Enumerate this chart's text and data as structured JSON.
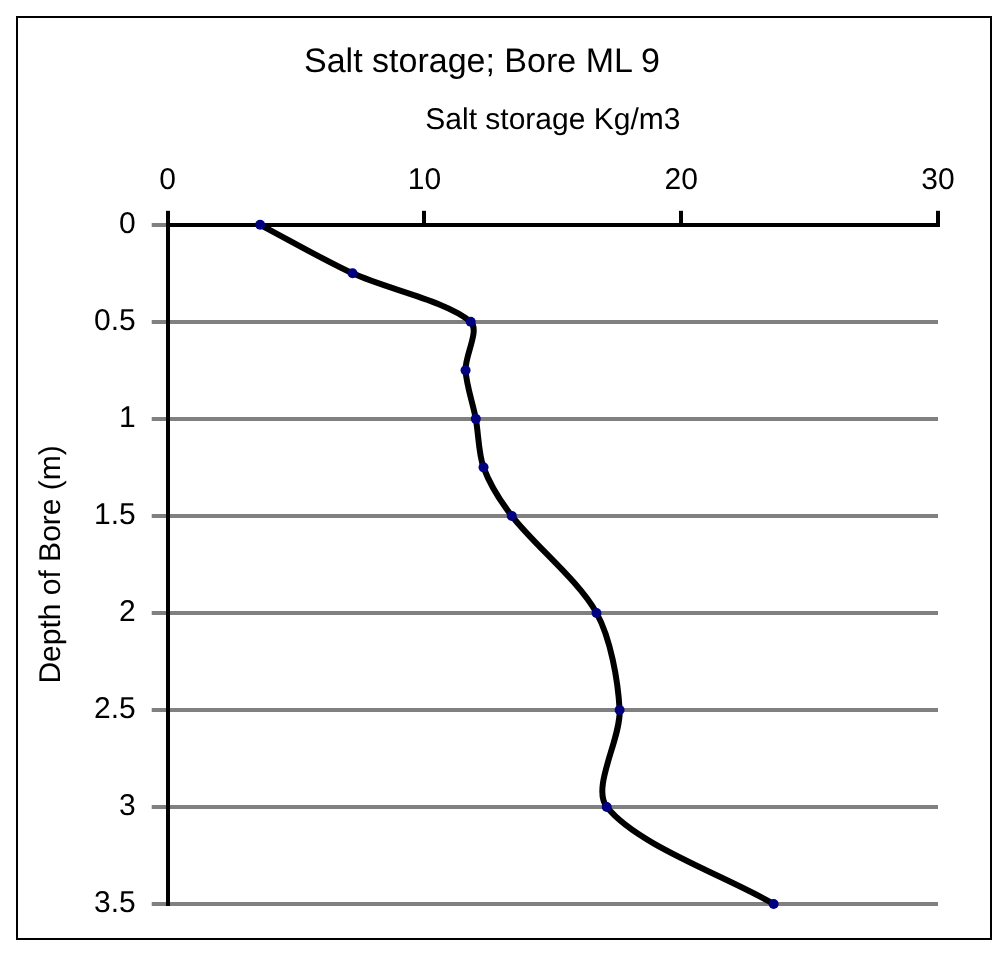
{
  "chart_data": {
    "type": "line",
    "title": "Salt storage; Bore ML 9",
    "xlabel": "Salt storage Kg/m3",
    "ylabel": "Depth of Bore (m)",
    "xlim": [
      0,
      30
    ],
    "xticks": [
      0,
      10,
      20,
      30
    ],
    "ylim": [
      3.5,
      0
    ],
    "yticks": [
      0,
      0.5,
      1,
      1.5,
      2,
      2.5,
      3,
      3.5
    ],
    "grid": "y",
    "legend": false,
    "marker": "circle",
    "line_style": "solid",
    "series": [
      {
        "color": "#000000",
        "x": [
          3.6,
          7.2,
          11.8,
          11.6,
          12.0,
          12.3,
          13.4,
          16.7,
          17.6,
          17.1,
          23.6
        ],
        "values": [
          0,
          0.25,
          0.5,
          0.75,
          1.0,
          1.25,
          1.5,
          2.0,
          2.5,
          3.0,
          3.5
        ]
      }
    ]
  }
}
